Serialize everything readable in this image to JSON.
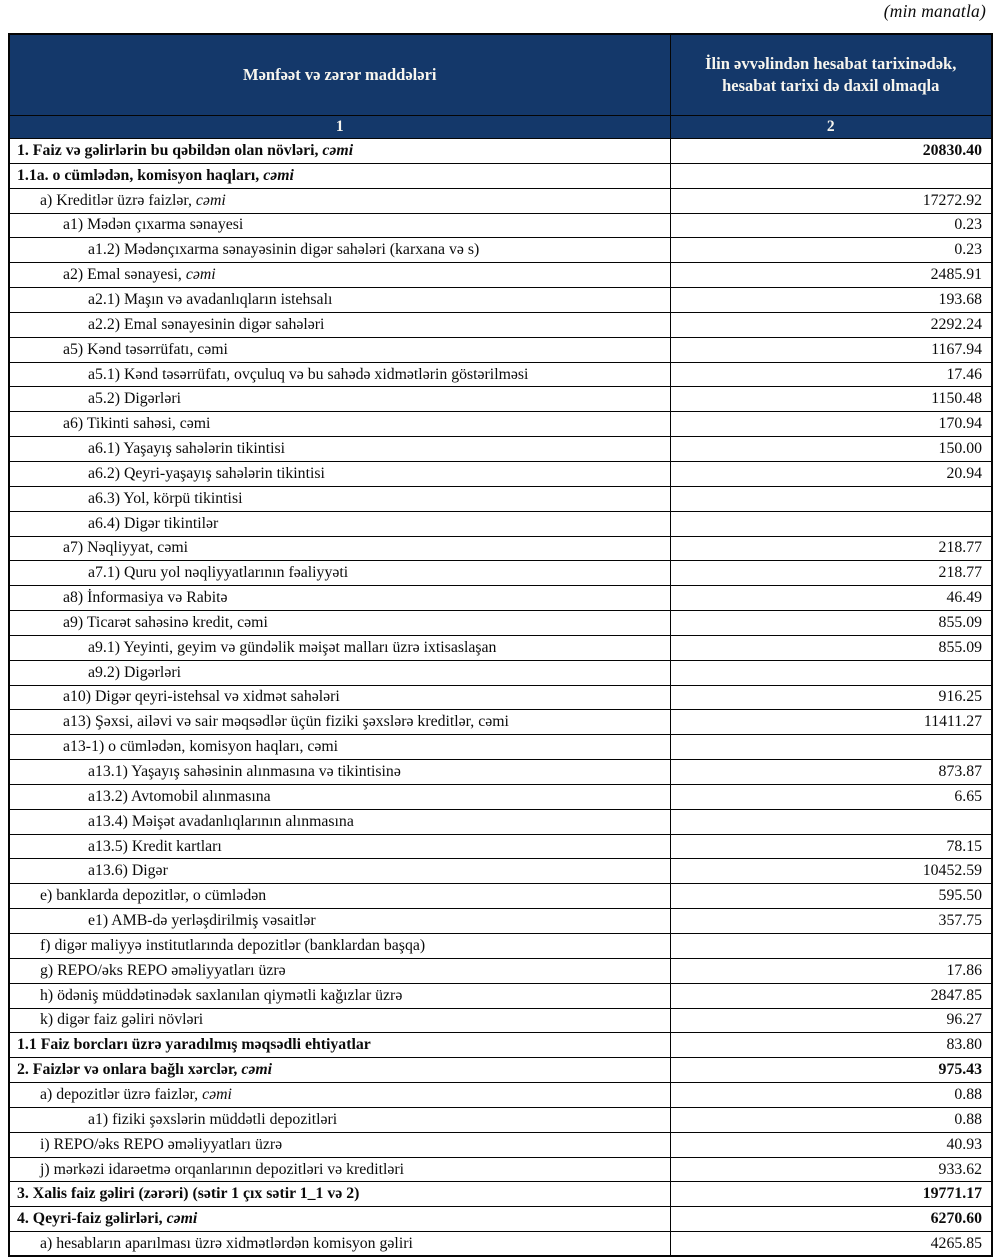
{
  "note": "(min manatla)",
  "table": {
    "header": {
      "col1": "Mənfəət və zərər maddələri",
      "col2": "İlin əvvəlindən hesabat tarixinədək, hesabat tarixi də daxil olmaqla",
      "col1_num": "1",
      "col2_num": "2",
      "bg_color": "#14386a",
      "text_color": "#f7f5ee"
    },
    "rows": [
      {
        "label": "1. Faiz və gəlirlərin bu qəbildən olan növləri, ",
        "em": "cəmi",
        "value": "20830.40",
        "indent": 0,
        "bold": true,
        "vbold": true
      },
      {
        "label": "1.1a. o cümlədən, komisyon haqları, ",
        "em": "cəmi",
        "value": "",
        "indent": 0,
        "bold": true,
        "vbold": false
      },
      {
        "label": "a) Kreditlər üzrə faizlər, ",
        "em": "cəmi",
        "value": "17272.92",
        "indent": 1,
        "bold": false,
        "vbold": false
      },
      {
        "label": "a1) Mədən çıxarma sənayesi",
        "em": "",
        "value": "0.23",
        "indent": 2,
        "bold": false,
        "vbold": false
      },
      {
        "label": "a1.2) Mədənçıxarma sənayəsinin digər sahələri (karxana və s)",
        "em": "",
        "value": "0.23",
        "indent": 3,
        "bold": false,
        "vbold": false
      },
      {
        "label": "a2) Emal sənayesi, ",
        "em": "cəmi",
        "value": "2485.91",
        "indent": 2,
        "bold": false,
        "vbold": false
      },
      {
        "label": "a2.1) Maşın və avadanlıqların istehsalı",
        "em": "",
        "value": "193.68",
        "indent": 3,
        "bold": false,
        "vbold": false
      },
      {
        "label": "a2.2) Emal sənayesinin digər sahələri",
        "em": "",
        "value": "2292.24",
        "indent": 3,
        "bold": false,
        "vbold": false
      },
      {
        "label": "a5) Kənd təsərrüfatı, cəmi",
        "em": "",
        "value": "1167.94",
        "indent": 2,
        "bold": false,
        "vbold": false
      },
      {
        "label": "a5.1) Kənd təsərrüfatı, ovçuluq və bu sahədə xidmətlərin göstərilməsi",
        "em": "",
        "value": "17.46",
        "indent": 3,
        "bold": false,
        "vbold": false
      },
      {
        "label": "a5.2) Digərləri",
        "em": "",
        "value": "1150.48",
        "indent": 3,
        "bold": false,
        "vbold": false
      },
      {
        "label": "a6) Tikinti sahəsi, cəmi",
        "em": "",
        "value": "170.94",
        "indent": 2,
        "bold": false,
        "vbold": false
      },
      {
        "label": "a6.1) Yaşayış sahələrin tikintisi",
        "em": "",
        "value": "150.00",
        "indent": 3,
        "bold": false,
        "vbold": false
      },
      {
        "label": "a6.2) Qeyri-yaşayış sahələrin tikintisi",
        "em": "",
        "value": "20.94",
        "indent": 3,
        "bold": false,
        "vbold": false
      },
      {
        "label": "a6.3) Yol, körpü tikintisi",
        "em": "",
        "value": "",
        "indent": 3,
        "bold": false,
        "vbold": false
      },
      {
        "label": "a6.4) Digər tikintilər",
        "em": "",
        "value": "",
        "indent": 3,
        "bold": false,
        "vbold": false
      },
      {
        "label": "a7) Nəqliyyat, cəmi",
        "em": "",
        "value": "218.77",
        "indent": 2,
        "bold": false,
        "vbold": false
      },
      {
        "label": "a7.1) Quru yol nəqliyyatlarının fəaliyyəti",
        "em": "",
        "value": "218.77",
        "indent": 3,
        "bold": false,
        "vbold": false
      },
      {
        "label": "a8)  İnformasiya və Rabitə",
        "em": "",
        "value": "46.49",
        "indent": 2,
        "bold": false,
        "vbold": false
      },
      {
        "label": "a9) Ticarət sahəsinə kredit, cəmi",
        "em": "",
        "value": "855.09",
        "indent": 2,
        "bold": false,
        "vbold": false
      },
      {
        "label": "a9.1) Yeyinti, geyim və gündəlik məişət malları üzrə ixtisaslaşan",
        "em": "",
        "value": "855.09",
        "indent": 3,
        "bold": false,
        "vbold": false
      },
      {
        "label": "a9.2) Digərləri",
        "em": "",
        "value": "",
        "indent": 3,
        "bold": false,
        "vbold": false
      },
      {
        "label": "a10) Digər qeyri-istehsal və xidmət sahələri",
        "em": "",
        "value": "916.25",
        "indent": 2,
        "bold": false,
        "vbold": false
      },
      {
        "label": "a13) Şəxsi, ailəvi və sair məqsədlər üçün fiziki şəxslərə kreditlər, cəmi",
        "em": "",
        "value": "11411.27",
        "indent": 2,
        "bold": false,
        "vbold": false
      },
      {
        "label": "a13-1) o cümlədən, komisyon haqları, cəmi",
        "em": "",
        "value": "",
        "indent": 2,
        "bold": false,
        "vbold": false
      },
      {
        "label": "a13.1) Yaşayış sahəsinin alınmasına və tikintisinə",
        "em": "",
        "value": "873.87",
        "indent": 3,
        "bold": false,
        "vbold": false
      },
      {
        "label": "a13.2) Avtomobil alınmasına",
        "em": "",
        "value": "6.65",
        "indent": 3,
        "bold": false,
        "vbold": false
      },
      {
        "label": "a13.4) Məişət avadanlıqlarının alınmasına",
        "em": "",
        "value": "",
        "indent": 3,
        "bold": false,
        "vbold": false
      },
      {
        "label": "a13.5) Kredit kartları",
        "em": "",
        "value": "78.15",
        "indent": 3,
        "bold": false,
        "vbold": false
      },
      {
        "label": "a13.6) Digər",
        "em": "",
        "value": "10452.59",
        "indent": 3,
        "bold": false,
        "vbold": false
      },
      {
        "label": "e) banklarda depozitlər, o cümlədən",
        "em": "",
        "value": "595.50",
        "indent": 1,
        "bold": false,
        "vbold": false
      },
      {
        "label": "e1)  AMB-də yerləşdirilmiş vəsaitlər",
        "em": "",
        "value": "357.75",
        "indent": 3,
        "bold": false,
        "vbold": false
      },
      {
        "label": "f) digər maliyyə institutlarında depozitlər (banklardan başqa)",
        "em": "",
        "value": "",
        "indent": 1,
        "bold": false,
        "vbold": false
      },
      {
        "label": "g) REPO/əks REPO əməliyyatları üzrə",
        "em": "",
        "value": "17.86",
        "indent": 1,
        "bold": false,
        "vbold": false
      },
      {
        "label": "h) ödəniş müddətinədək saxlanılan qiymətli kağızlar üzrə",
        "em": "",
        "value": "2847.85",
        "indent": 1,
        "bold": false,
        "vbold": false
      },
      {
        "label": "k) digər faiz gəliri növləri",
        "em": "",
        "value": "96.27",
        "indent": 1,
        "bold": false,
        "vbold": false
      },
      {
        "label": "1.1 Faiz borcları üzrə yaradılmış məqsədli ehtiyatlar",
        "em": "",
        "value": "83.80",
        "indent": 0,
        "bold": true,
        "vbold": false
      },
      {
        "label": "2. Faizlər və onlara bağlı xərclər, ",
        "em": "cəmi",
        "value": "975.43",
        "indent": 0,
        "bold": true,
        "vbold": true
      },
      {
        "label": "a) depozitlər üzrə faizlər, ",
        "em": "cəmi",
        "value": "0.88",
        "indent": 1,
        "bold": false,
        "vbold": false
      },
      {
        "label": "a1) fiziki şəxslərin müddətli depozitləri",
        "em": "",
        "value": "0.88",
        "indent": 3,
        "bold": false,
        "vbold": false
      },
      {
        "label": "i) REPO/əks REPO əməliyyatları üzrə",
        "em": "",
        "value": "40.93",
        "indent": 1,
        "bold": false,
        "vbold": false
      },
      {
        "label": "j) mərkəzi idarəetmə orqanlarının depozitləri və kreditləri",
        "em": "",
        "value": "933.62",
        "indent": 1,
        "bold": false,
        "vbold": false
      },
      {
        "label": "3. Xalis faiz gəliri (zərəri) (sətir 1 çıx sətir 1_1 və 2)",
        "em": "",
        "value": "19771.17",
        "indent": 0,
        "bold": true,
        "vbold": true
      },
      {
        "label": "4. Qeyri-faiz gəlirləri, ",
        "em": "cəmi",
        "value": "6270.60",
        "indent": 0,
        "bold": true,
        "vbold": true
      },
      {
        "label": "a) hesabların aparılması üzrə xidmətlərdən komisyon gəliri",
        "em": "",
        "value": "4265.85",
        "indent": 1,
        "bold": false,
        "vbold": false
      }
    ]
  }
}
